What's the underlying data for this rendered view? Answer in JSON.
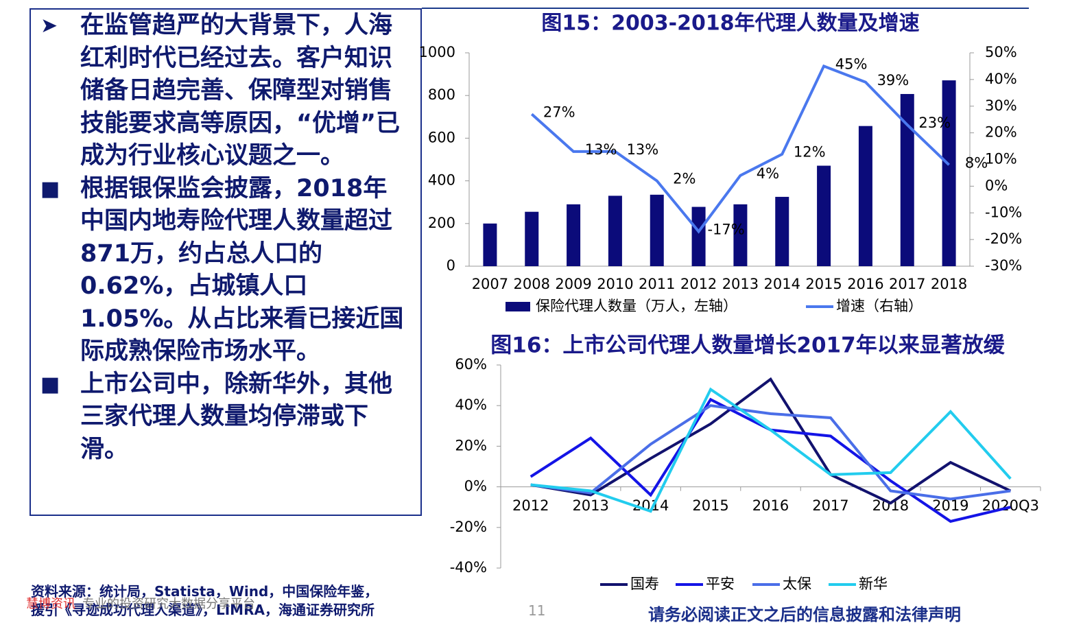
{
  "text_box": {
    "bullets": [
      {
        "marker": "➤",
        "text": "在监管趋严的大背景下，人海红利时代已经过去。客户知识储备日趋完善、保障型对销售技能要求高等原因，“优增”已成为行业核心议题之一。"
      },
      {
        "marker": "■",
        "text": "根据银保监会披露，2018年中国内地寿险代理人数量超过871万，约占总人口的0.62%，占城镇人口1.05%。从占比来看已接近国际成熟保险市场水平。"
      },
      {
        "marker": "■",
        "text": "上市公司中，除新华外，其他三家代理人数量均停滞或下滑。"
      }
    ]
  },
  "chart_data": [
    {
      "type": "bar",
      "title": "图15：2003-2018年代理人数量及增速",
      "categories": [
        "2007",
        "2008",
        "2009",
        "2010",
        "2011",
        "2012",
        "2013",
        "2014",
        "2015",
        "2016",
        "2017",
        "2018"
      ],
      "series": [
        {
          "name": "保险代理人数量（万人，左轴）",
          "color": "#0b0b7a",
          "values": [
            200,
            255,
            290,
            330,
            335,
            278,
            290,
            325,
            471,
            657,
            807,
            871
          ]
        },
        {
          "name": "增速（右轴）",
          "type": "line",
          "axis": "y2",
          "color": "#4a78ee",
          "values": [
            null,
            27,
            13,
            13,
            2,
            -17,
            4,
            12,
            45,
            39,
            23,
            8
          ],
          "value_labels": [
            null,
            "27%",
            "13%",
            "13%",
            "2%",
            "-17%",
            "4%",
            "12%",
            "45%",
            "39%",
            "23%",
            "8%"
          ]
        }
      ],
      "ylim": [
        0,
        1000
      ],
      "yticks": [
        0,
        200,
        400,
        600,
        800,
        1000
      ],
      "y2lim": [
        -30,
        50
      ],
      "y2ticks": [
        {
          "value": -30,
          "label": "-30%"
        },
        {
          "value": -20,
          "label": "-20%"
        },
        {
          "value": -10,
          "label": "-10%"
        },
        {
          "value": 0,
          "label": "0%"
        },
        {
          "value": 10,
          "label": "10%"
        },
        {
          "value": 20,
          "label": "20%"
        },
        {
          "value": 30,
          "label": "30%"
        },
        {
          "value": 40,
          "label": "40%"
        },
        {
          "value": 50,
          "label": "50%"
        }
      ]
    },
    {
      "type": "line",
      "title": "图16：上市公司代理人数量增长2017年以来显著放缓",
      "categories": [
        "2012",
        "2013",
        "2014",
        "2015",
        "2016",
        "2017",
        "2018",
        "2019",
        "2020Q3"
      ],
      "series": [
        {
          "name": "国寿",
          "color": "#12126e",
          "values": [
            1,
            -4,
            14,
            31,
            53,
            6,
            -8,
            12,
            -2
          ]
        },
        {
          "name": "平安",
          "color": "#1414e6",
          "values": [
            5,
            24,
            -4,
            43,
            28,
            25,
            3,
            -17,
            -10
          ]
        },
        {
          "name": "太保",
          "color": "#4a6ee8",
          "values": [
            1,
            -3,
            21,
            40,
            36,
            34,
            -2,
            -6,
            -2
          ]
        },
        {
          "name": "新华",
          "color": "#22ccee",
          "values": [
            1,
            -2,
            -12,
            48,
            28,
            6,
            7,
            37,
            4
          ]
        }
      ],
      "ylim": [
        -40,
        60
      ],
      "yticks": [
        {
          "value": -40,
          "label": "-40%"
        },
        {
          "value": -20,
          "label": "-20%"
        },
        {
          "value": 0,
          "label": "0%"
        },
        {
          "value": 20,
          "label": "20%"
        },
        {
          "value": 40,
          "label": "40%"
        },
        {
          "value": 60,
          "label": "60%"
        }
      ]
    }
  ],
  "footer": {
    "source_line1": "资料来源：统计局，Statista，Wind，中国保险年鉴，",
    "source_line2": "援引《寻迹成功代理人渠道》，LIMRA，海通证券研究所",
    "watermark_brand": "慧博资讯",
    "watermark_text": "专业的投资研究大数据分享平台",
    "page_number": "11",
    "disclaimer": "请务必阅读正文之后的信息披露和法律声明"
  }
}
